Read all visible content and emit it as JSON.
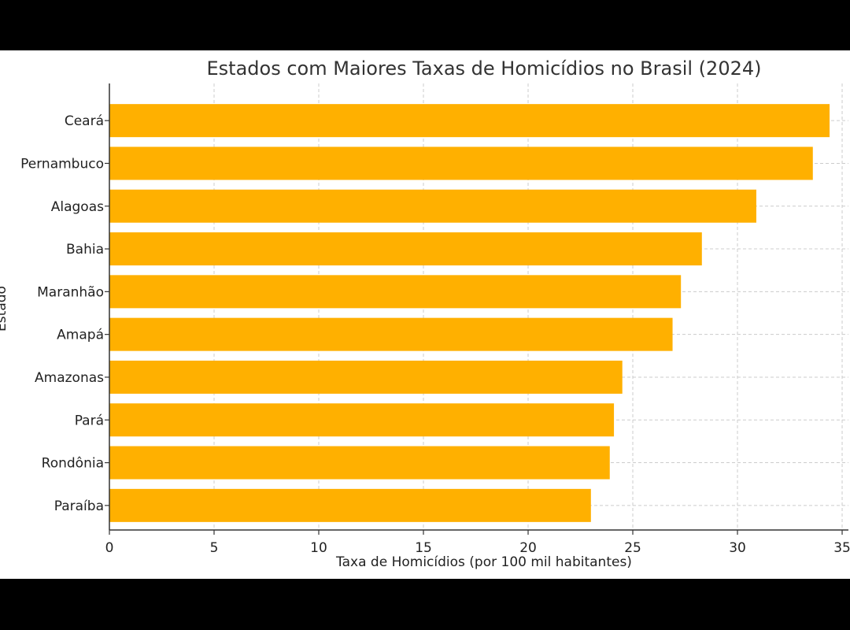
{
  "chart_data": {
    "type": "bar",
    "orientation": "horizontal",
    "title": "Estados com Maiores Taxas de Homicídios no Brasil (2024)",
    "xlabel": "Taxa de Homicídios (por 100 mil habitantes)",
    "ylabel": "Estado",
    "categories": [
      "Ceará",
      "Pernambuco",
      "Alagoas",
      "Bahia",
      "Maranhão",
      "Amapá",
      "Amazonas",
      "Pará",
      "Rondônia",
      "Paraíba"
    ],
    "values": [
      34.4,
      33.6,
      30.9,
      28.3,
      27.3,
      26.9,
      24.5,
      24.1,
      23.9,
      23.0
    ],
    "xlim": [
      0,
      35.3
    ],
    "xticks": [
      0,
      5,
      10,
      15,
      20,
      25,
      30,
      35
    ],
    "grid": true,
    "bar_color": "#FFB000",
    "grid_color": "#cccccc"
  }
}
